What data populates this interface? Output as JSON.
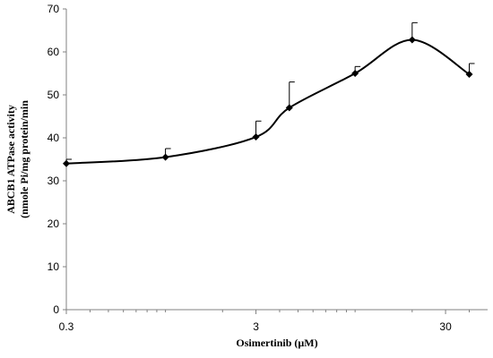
{
  "chart_data": {
    "type": "line",
    "title": "",
    "xlabel": "Osimertinib  (µM)",
    "ylabel_line1": "ABCB1 ATPase activity",
    "ylabel_line2": "(nmole Pi/mg protein/min",
    "x_scale": "log",
    "xlim": [
      0.3,
      50
    ],
    "ylim": [
      0,
      70
    ],
    "x_ticks": [
      0.3,
      3,
      30
    ],
    "x_tick_labels": [
      "0.3",
      "3",
      "30"
    ],
    "y_ticks": [
      0,
      10,
      20,
      30,
      40,
      50,
      60,
      70
    ],
    "y_tick_labels": [
      "0",
      "10",
      "20",
      "30",
      "40",
      "50",
      "60",
      "70"
    ],
    "grid": false,
    "legend": "none",
    "smooth": true,
    "colors": {
      "line": "#000000",
      "marker": "#000000",
      "error_bar": "#000000"
    },
    "series": [
      {
        "x": [
          0.3,
          1.0,
          3.0,
          4.5,
          10.0,
          20.0,
          40.0
        ],
        "y": [
          34,
          35.5,
          40.2,
          47,
          55,
          62.8,
          54.8
        ],
        "error_upper": [
          1,
          2,
          3.7,
          6,
          1.6,
          4,
          2.5
        ]
      }
    ]
  }
}
